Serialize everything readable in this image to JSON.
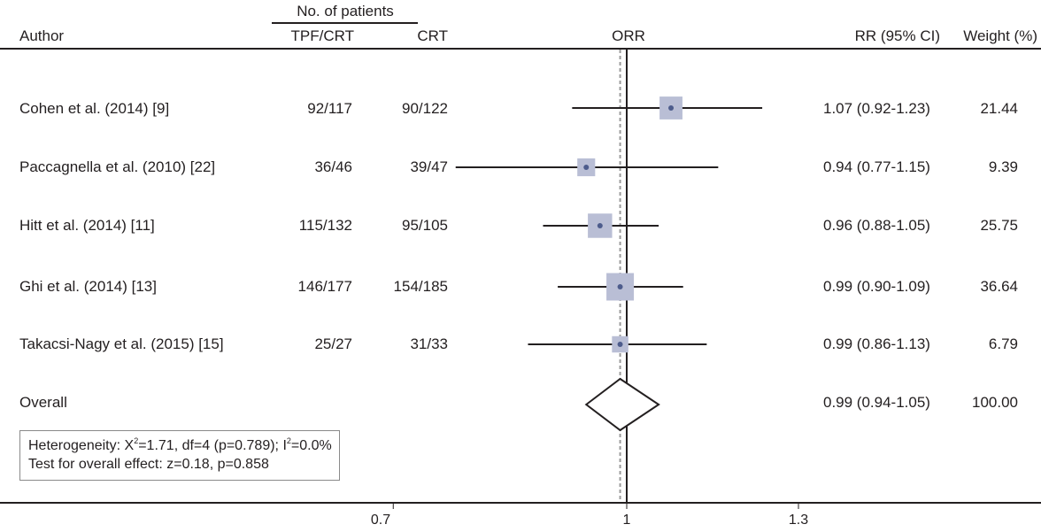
{
  "header": {
    "group_label": "No. of patients",
    "col_author": "Author",
    "col_tpf": "TPF/CRT",
    "col_crt": "CRT",
    "col_plot": "ORR",
    "col_rr": "RR (95% CI)",
    "col_weight": "Weight (%)"
  },
  "rows": [
    {
      "author": "Cohen et al. (2014) [9]",
      "tpf": "92/117",
      "crt": "90/122",
      "rr_text": "1.07 (0.92-1.23)",
      "weight": "21.44"
    },
    {
      "author": "Paccagnella et al. (2010) [22]",
      "tpf": "36/46",
      "crt": "39/47",
      "rr_text": "0.94 (0.77-1.15)",
      "weight": "9.39"
    },
    {
      "author": "Hitt et al. (2014) [11]",
      "tpf": "115/132",
      "crt": "95/105",
      "rr_text": "0.96 (0.88-1.05)",
      "weight": "25.75"
    },
    {
      "author": "Ghi et al. (2014) [13]",
      "tpf": "146/177",
      "crt": "154/185",
      "rr_text": "0.99 (0.90-1.09)",
      "weight": "36.64"
    },
    {
      "author": "Takacsi-Nagy et al. (2015) [15]",
      "tpf": "25/27",
      "crt": "31/33",
      "rr_text": "0.99 (0.86-1.13)",
      "weight": "6.79"
    }
  ],
  "overall": {
    "label": "Overall",
    "rr_text": "0.99 (0.94-1.05)",
    "weight": "100.00"
  },
  "heterogeneity": {
    "line1_a": "Heterogeneity: X",
    "line1_sup1": "2",
    "line1_b": "=1.71, df=4 (p=0.789); I",
    "line1_sup2": "2",
    "line1_c": "=0.0%",
    "line2": "Test for overall effect: z=0.18, p=0.858"
  },
  "axis_ticks": [
    "0.7",
    "1",
    "1.3"
  ],
  "colors": {
    "square": "#b9bed5",
    "point": "#4d5c8c",
    "line": "#231f20",
    "ref_dashed": "#9a9a9a"
  },
  "chart_data": {
    "type": "forest",
    "xlabel": "ORR",
    "xlim": [
      0.7,
      1.3
    ],
    "ticks": [
      0.7,
      1,
      1.3
    ],
    "reference": 1,
    "series": [
      {
        "study": "Cohen et al. (2014) [9]",
        "rr": 1.07,
        "lo": 0.92,
        "hi": 1.23,
        "weight": 21.44
      },
      {
        "study": "Paccagnella et al. (2010) [22]",
        "rr": 0.94,
        "lo": 0.77,
        "hi": 1.15,
        "weight": 9.39
      },
      {
        "study": "Hitt et al. (2014) [11]",
        "rr": 0.96,
        "lo": 0.88,
        "hi": 1.05,
        "weight": 25.75
      },
      {
        "study": "Ghi et al. (2014) [13]",
        "rr": 0.99,
        "lo": 0.9,
        "hi": 1.09,
        "weight": 36.64
      },
      {
        "study": "Takacsi-Nagy et al. (2015) [15]",
        "rr": 0.99,
        "lo": 0.86,
        "hi": 1.13,
        "weight": 6.79
      }
    ],
    "overall": {
      "rr": 0.99,
      "lo": 0.94,
      "hi": 1.05,
      "weight": 100.0
    }
  }
}
